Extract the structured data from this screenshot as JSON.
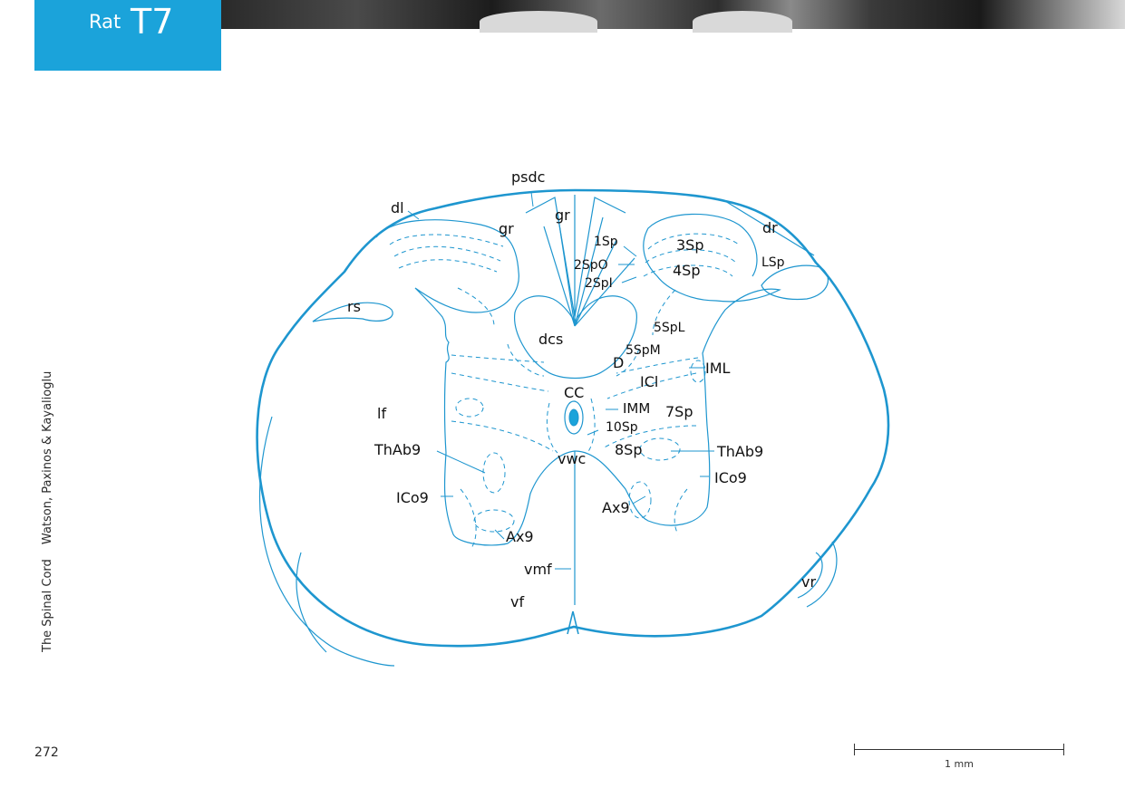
{
  "header": {
    "species": "Rat",
    "level": "T7"
  },
  "sidebar": {
    "book_title": "The Spinal Cord",
    "authors": "Watson, Paxinos & Kayalioglu"
  },
  "footer": {
    "page_number": "272",
    "scale_label": "1 mm"
  },
  "labels": {
    "psdc": "psdc",
    "dl": "dl",
    "gr_left": "gr",
    "gr_mid": "gr",
    "dr": "dr",
    "sp1": "1Sp",
    "sp2o": "2SpO",
    "sp2i": "2SpI",
    "sp3": "3Sp",
    "sp4": "4Sp",
    "lsp": "LSp",
    "rs": "rs",
    "dcs": "dcs",
    "sp5l": "5SpL",
    "sp5m": "5SpM",
    "d": "D",
    "icl": "ICl",
    "iml": "IML",
    "cc": "CC",
    "imm": "IMM",
    "sp7": "7Sp",
    "sp10": "10Sp",
    "lf": "lf",
    "thab9_left": "ThAb9",
    "thab9_right": "ThAb9",
    "sp8": "8Sp",
    "vwc": "vwc",
    "ico9_left": "ICo9",
    "ico9_right": "ICo9",
    "ax9_left": "Ax9",
    "ax9_right": "Ax9",
    "vmf": "vmf",
    "vf": "vf",
    "vr": "vr"
  },
  "colors": {
    "header_tab": "#1ba3da",
    "outline": "#1e96cf",
    "central_canal": "#1ba3da"
  }
}
